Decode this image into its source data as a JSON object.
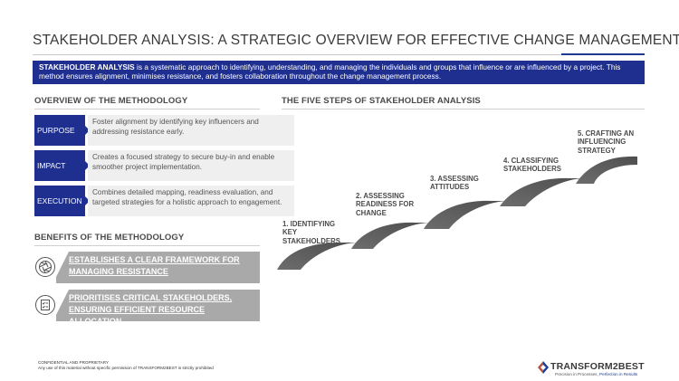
{
  "title": "STAKEHOLDER ANALYSIS: A STRATEGIC OVERVIEW FOR EFFECTIVE CHANGE MANAGEMENT",
  "intro": {
    "bold": "STAKEHOLDER ANALYSIS",
    "text": " is a systematic approach to identifying, understanding, and managing the individuals and groups that influence or are influenced by a project. This method ensures alignment, minimises resistance, and fosters collaboration throughout the change management process."
  },
  "overview": {
    "heading": "OVERVIEW OF THE METHODOLOGY",
    "rows": [
      {
        "label": "PURPOSE",
        "text": "Foster alignment by identifying key influencers and addressing resistance early."
      },
      {
        "label": "IMPACT",
        "text": "Creates a focused strategy to secure buy-in and enable smoother project implementation."
      },
      {
        "label": "EXECUTION",
        "text": "Combines detailed mapping, readiness evaluation, and targeted strategies for a holistic approach to engagement."
      }
    ]
  },
  "benefits": {
    "heading": "BENEFITS OF THE METHODOLOGY",
    "items": [
      {
        "text": "ESTABLISHES A CLEAR FRAMEWORK FOR MANAGING RESISTANCE",
        "icon": "aperture-icon"
      },
      {
        "text": "PRIORITISES CRITICAL STAKEHOLDERS, ENSURING EFFICIENT RESOURCE ALLOCATION",
        "icon": "checklist-icon"
      }
    ]
  },
  "steps": {
    "heading": "THE FIVE STEPS OF STAKEHOLDER ANALYSIS",
    "items": [
      {
        "label": "1. IDENTIFYING KEY STAKEHOLDERS"
      },
      {
        "label": "2. ASSESSING READINESS FOR CHANGE"
      },
      {
        "label": "3. ASSESSING ATTITUDES"
      },
      {
        "label": "4. CLASSIFYING STAKEHOLDERS"
      },
      {
        "label": "5. CRAFTING AN INFLUENCING STRATEGY"
      }
    ]
  },
  "footer": {
    "line1": "CONFIDENTIAL AND PROPRIETARY",
    "line2": "Any use of this material without specific permission of TRANSFORM2BEST is strictly prohibited"
  },
  "logo": {
    "name": "TRANSFORM2BEST",
    "tag_a": "Precision in Processes, ",
    "tag_b": "Perfection in Results"
  },
  "colors": {
    "brand_blue": "#1f2f8f",
    "step_gray": "#5f5f5f",
    "benefit_gray": "#a9a9a9"
  }
}
